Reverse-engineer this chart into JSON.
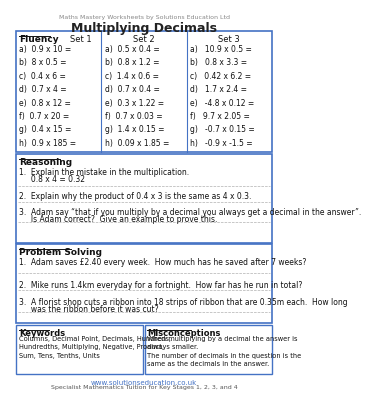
{
  "title": "Multiplying Decimals",
  "subtitle": "Maths Mastery Worksheets by Solutions Education Ltd",
  "bg_color": "#ffffff",
  "fluency_label": "Fluency",
  "set1_label": "Set 1",
  "set2_label": "Set 2",
  "set3_label": "Set 3",
  "set1": [
    "a)  0.9 x 10 =",
    "b)  8 x 0.5 =",
    "c)  0.4 x 6 =",
    "d)  0.7 x 4 =",
    "e)  0.8 x 12 =",
    "f)  0.7 x 20 =",
    "g)  0.4 x 15 =",
    "h)  0.9 x 185 ="
  ],
  "set2": [
    "a)  0.5 x 0.4 =",
    "b)  0.8 x 1.2 =",
    "c)  1.4 x 0.6 =",
    "d)  0.7 x 0.4 =",
    "e)  0.3 x 1.22 =",
    "f)  0.7 x 0.03 =",
    "g)  1.4 x 0.15 =",
    "h)  0.09 x 1.85 ="
  ],
  "set3": [
    "a)   10.9 x 0.5 =",
    "b)   0.8 x 3.3 =",
    "c)   0.42 x 6.2 =",
    "d)   1.7 x 2.4 =",
    "e)   -4.8 x 0.12 =",
    "f)   9.7 x 2.05 =",
    "g)   -0.7 x 0.15 =",
    "h)   -0.9 x -1.5 ="
  ],
  "reasoning_label": "Reasoning",
  "rq1": "1.  Explain the mistake in the multiplication.",
  "rq1b": "     0.8 x 4 = 0.32",
  "rq2": "2.  Explain why the product of 0.4 x 3 is the same as 4 x 0.3.",
  "rq3a": "3.  Adam say “that if you multiply by a decimal you always get a decimal in the answer”.",
  "rq3b": "     Is Adam correct?  Give an example to prove this.",
  "problem_label": "Problem Solving",
  "pq1": "1.  Adam saves £2.40 every week.  How much has he saved after 7 weeks?",
  "pq2": "2.  Mike runs 1.4km everyday for a fortnight.  How far has he run in total?",
  "pq3a": "3.  A florist shop cuts a ribbon into 18 strips of ribbon that are 0.35m each.  How long",
  "pq3b": "     was the ribbon before it was cut?",
  "keywords_label": "Keywords",
  "keywords_text": "Columns, Decimal Point, Decimals, Hundreds,\nHundredths, Multiplying, Negative, Product,\nSum, Tens, Tenths, Units",
  "misconceptions_label": "Misconceptions",
  "misconceptions_text": "When multiplying by a decimal the answer is\nalways smaller.\nThe number of decimals in the question is the\nsame as the decimals in the answer.",
  "footer1": "www.solutionseducation.co.uk",
  "footer2": "Specialist Mathematics Tuition for Key Stages 1, 2, 3, and 4",
  "border_color": "#4472c4",
  "dashed_color": "#b0b0b0"
}
